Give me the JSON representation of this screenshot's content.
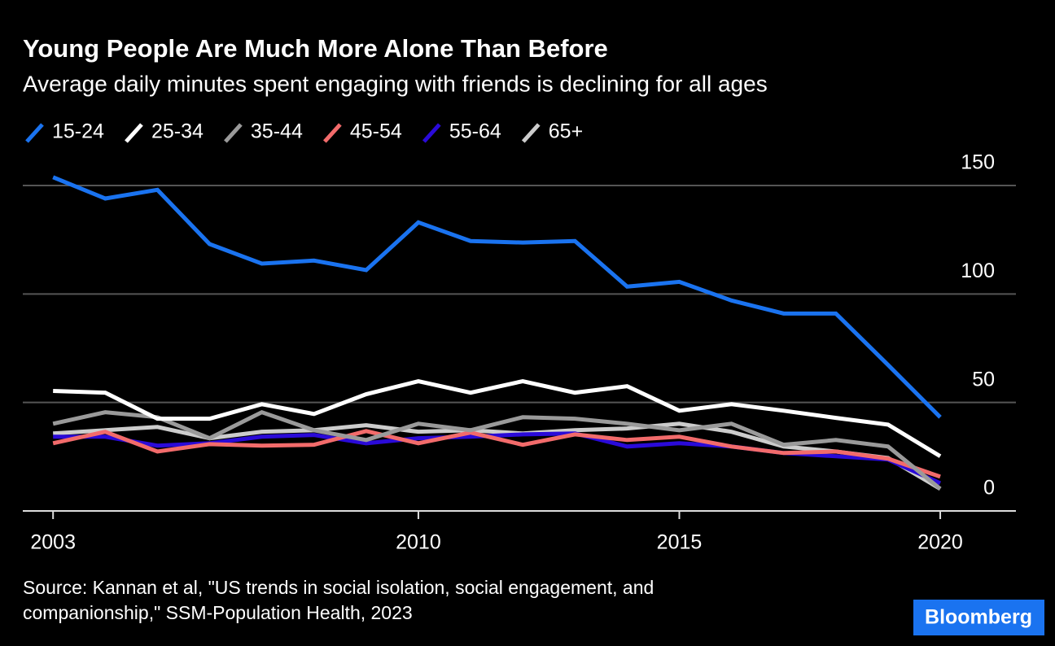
{
  "chart_data": {
    "type": "line",
    "title": "Young People Are Much More Alone Than Before",
    "subtitle": "Average daily minutes spent engaging with friends is declining for all ages",
    "source": [
      "Source: Kannan et al, \"US trends in social isolation, social engagement, and",
      "companionship,\" SSM-Population Health, 2023"
    ],
    "logo": "Bloomberg",
    "x": [
      2003,
      2004,
      2005,
      2006,
      2007,
      2008,
      2009,
      2010,
      2011,
      2012,
      2013,
      2014,
      2015,
      2016,
      2017,
      2018,
      2019,
      2020
    ],
    "series": [
      {
        "name": "15-24",
        "color": "#1a73f0",
        "values": [
          153.8,
          144,
          148,
          123,
          114,
          115.4,
          111,
          133,
          124.4,
          123.7,
          124.4,
          103.4,
          105.6,
          97,
          91,
          91,
          67.3,
          43.2
        ]
      },
      {
        "name": "25-34",
        "color": "#ffffff",
        "values": [
          55.3,
          54.5,
          42.5,
          42.5,
          49.2,
          44.7,
          53.8,
          59.8,
          54.5,
          59.8,
          54.5,
          57.5,
          46.2,
          49.2,
          46.2,
          42.9,
          39.8,
          25.2
        ]
      },
      {
        "name": "35-44",
        "color": "#9a9a9a",
        "values": [
          40.2,
          45.5,
          43.2,
          33.5,
          45.5,
          37.2,
          32.7,
          40.2,
          37.2,
          43.2,
          42.5,
          40.2,
          37.2,
          40.2,
          30.5,
          32.7,
          29.7,
          10.2
        ]
      },
      {
        "name": "45-54",
        "color": "#f26b6b",
        "values": [
          31.2,
          36.5,
          27.4,
          30.8,
          30.1,
          30.5,
          36.8,
          31.2,
          36.1,
          30.5,
          35.3,
          32.7,
          34.2,
          29.7,
          26.7,
          27.4,
          24.1,
          15.8
        ]
      },
      {
        "name": "55-64",
        "color": "#2a0ad8",
        "values": [
          34.2,
          34.2,
          30.1,
          31.2,
          34.2,
          35,
          31.2,
          33.5,
          34.2,
          35.3,
          35.7,
          29.7,
          31.2,
          29.7,
          26.7,
          25.2,
          23.7,
          12.8
        ]
      },
      {
        "name": "65+",
        "color": "#cccccc",
        "values": [
          35.7,
          37.2,
          38.7,
          33.5,
          36.5,
          37.2,
          39.5,
          36.5,
          37.2,
          35.7,
          37.2,
          38,
          40.2,
          36.5,
          29.7,
          27.4,
          24.4,
          10.2
        ]
      }
    ],
    "xlim": [
      2002.42,
      2021.45
    ],
    "xticks": [
      2003,
      2010,
      2015,
      2020
    ],
    "ylim": [
      0,
      150
    ],
    "yticks": [
      0,
      50,
      100,
      150
    ],
    "grid": true,
    "legend": "top-left"
  }
}
